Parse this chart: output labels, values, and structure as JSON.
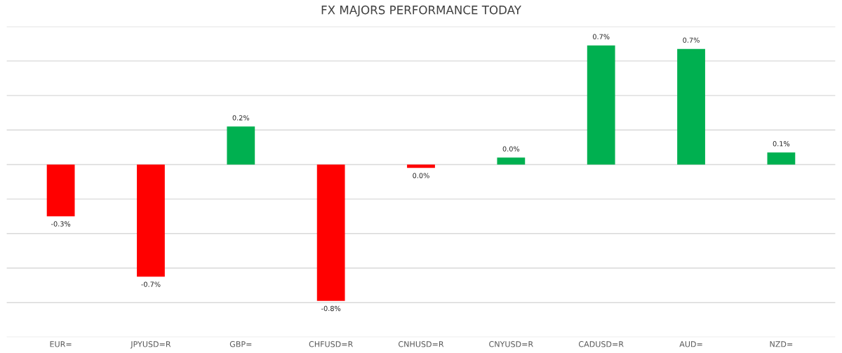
{
  "chart_data": {
    "type": "bar",
    "title": "FX MAJORS PERFORMANCE TODAY",
    "categories": [
      "EUR=",
      "JPYUSD=R",
      "GBP=",
      "CHFUSD=R",
      "CNHUSD=R",
      "CNYUSD=R",
      "CADUSD=R",
      "AUD=",
      "NZD="
    ],
    "values": [
      -0.3,
      -0.65,
      0.22,
      -0.79,
      -0.02,
      0.04,
      0.69,
      0.67,
      0.07
    ],
    "colors": [
      "#ff0000",
      "#ff0000",
      "#00b050",
      "#ff0000",
      "#ff0000",
      "#00b050",
      "#00b050",
      "#00b050",
      "#00b050"
    ],
    "value_labels": [
      "-0.3%",
      "-0.7%",
      "0.2%",
      "-0.8%",
      "0.0%",
      "0.0%",
      "0.7%",
      "0.7%",
      "0.1%"
    ],
    "ylim": [
      -1.0,
      0.8
    ],
    "yticks": [
      {
        "value": -1.0,
        "label": null
      },
      {
        "value": -0.8,
        "label": null
      },
      {
        "value": -0.6,
        "label": null
      },
      {
        "value": -0.4,
        "label": null
      },
      {
        "value": -0.2,
        "label": null
      },
      {
        "value": 0,
        "label": null
      },
      {
        "value": 0.2,
        "label": null
      },
      {
        "value": 0.4,
        "label": null
      },
      {
        "value": 0.6,
        "label": null
      },
      {
        "value": 0.8,
        "label": null
      }
    ],
    "tick_labels": "x",
    "grid": "y"
  }
}
